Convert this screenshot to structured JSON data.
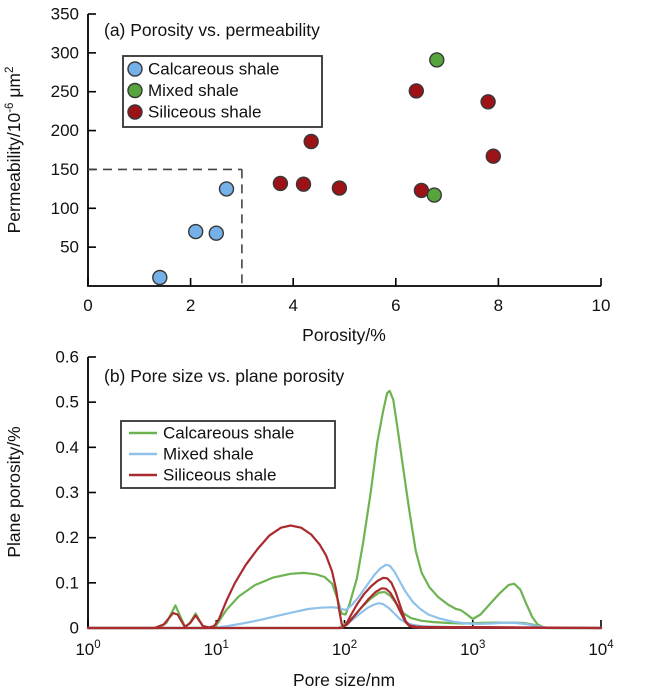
{
  "chart_data": [
    {
      "id": "a",
      "type": "scatter",
      "title": "(a) Porosity vs. permeability",
      "xlabel": "Porosity/%",
      "ylabel": "Permeability/10⁻⁶ μm²",
      "ylabel_parts": [
        [
          "Permeability/10",
          0
        ],
        [
          "-6",
          1
        ],
        [
          " μm",
          0
        ],
        [
          "2",
          1
        ]
      ],
      "xlim": [
        0,
        10
      ],
      "ylim": [
        0,
        350
      ],
      "xticks": [
        {
          "v": 0,
          "label": "0"
        },
        {
          "v": 2,
          "label": "2"
        },
        {
          "v": 4,
          "label": "4"
        },
        {
          "v": 6,
          "label": "6"
        },
        {
          "v": 8,
          "label": "8"
        },
        {
          "v": 10,
          "label": "10"
        }
      ],
      "yticks": [
        {
          "v": 50,
          "label": "50"
        },
        {
          "v": 100,
          "label": "100"
        },
        {
          "v": 150,
          "label": "150"
        },
        {
          "v": 200,
          "label": "200"
        },
        {
          "v": 250,
          "label": "250"
        },
        {
          "v": 300,
          "label": "300"
        },
        {
          "v": 350,
          "label": "350"
        }
      ],
      "grid": false,
      "legend_position": "upper-left-inside",
      "threshold_box": {
        "x": 3,
        "y": 150
      },
      "legend": [
        {
          "label": "Calcareous shale",
          "color": "#73b1e8"
        },
        {
          "label": "Mixed shale",
          "color": "#56a53c"
        },
        {
          "label": "Siliceous shale",
          "color": "#9d1217"
        }
      ],
      "series": [
        {
          "name": "Calcareous shale",
          "color": "#73b1e8",
          "points": [
            [
              1.4,
              11
            ],
            [
              2.1,
              70
            ],
            [
              2.5,
              68
            ],
            [
              2.7,
              125
            ]
          ]
        },
        {
          "name": "Mixed shale",
          "color": "#56a53c",
          "points": [
            [
              6.75,
              117
            ],
            [
              6.8,
              291
            ]
          ]
        },
        {
          "name": "Siliceous shale",
          "color": "#9d1217",
          "points": [
            [
              3.75,
              132
            ],
            [
              4.2,
              131
            ],
            [
              4.35,
              186
            ],
            [
              4.9,
              126
            ],
            [
              6.4,
              251
            ],
            [
              6.5,
              123
            ],
            [
              7.8,
              237
            ],
            [
              7.9,
              167
            ]
          ]
        }
      ],
      "draw_order": [
        0,
        2,
        1
      ]
    },
    {
      "id": "b",
      "type": "line",
      "title": "(b) Pore size vs. plane porosity",
      "xlabel": "Pore size/nm",
      "ylabel": "Plane porosity/%",
      "xscale": "log",
      "xlim": [
        1,
        10000
      ],
      "ylim": [
        0,
        0.6
      ],
      "xtick_exponents": [
        0,
        1,
        2,
        3,
        4
      ],
      "yticks": [
        {
          "v": 0,
          "label": "0"
        },
        {
          "v": 0.1,
          "label": "0.1"
        },
        {
          "v": 0.2,
          "label": "0.2"
        },
        {
          "v": 0.3,
          "label": "0.3"
        },
        {
          "v": 0.4,
          "label": "0.4"
        },
        {
          "v": 0.5,
          "label": "0.5"
        },
        {
          "v": 0.6,
          "label": "0.6"
        }
      ],
      "grid": false,
      "legend_position": "upper-left-inside",
      "legend": [
        {
          "label": "Calcareous shale",
          "color": "#6eb352"
        },
        {
          "label": "Mixed shale",
          "color": "#8fc2ea"
        },
        {
          "label": "Siliceous shale",
          "color": "#aa2b2f"
        }
      ],
      "series": [
        {
          "name": "Calcareous shale 1",
          "group": "Calcareous shale",
          "color": "#6eb352",
          "points": [
            [
              1,
              0
            ],
            [
              3.6,
              0
            ],
            [
              4.1,
              0.012
            ],
            [
              4.8,
              0.05
            ],
            [
              5.7,
              0.003
            ],
            [
              6.2,
              0.01
            ],
            [
              6.9,
              0.032
            ],
            [
              7.8,
              0.005
            ],
            [
              8.8,
              0.001
            ],
            [
              10,
              0.006
            ],
            [
              12,
              0.04
            ],
            [
              15,
              0.07
            ],
            [
              20,
              0.095
            ],
            [
              28,
              0.112
            ],
            [
              38,
              0.12
            ],
            [
              48,
              0.122
            ],
            [
              60,
              0.119
            ],
            [
              70,
              0.113
            ],
            [
              80,
              0.098
            ],
            [
              88,
              0.065
            ],
            [
              95,
              0.032
            ],
            [
              102,
              0.03
            ],
            [
              110,
              0.055
            ],
            [
              125,
              0.11
            ],
            [
              140,
              0.19
            ],
            [
              160,
              0.3
            ],
            [
              180,
              0.41
            ],
            [
              200,
              0.48
            ],
            [
              215,
              0.52
            ],
            [
              225,
              0.525
            ],
            [
              240,
              0.505
            ],
            [
              260,
              0.44
            ],
            [
              285,
              0.36
            ],
            [
              320,
              0.26
            ],
            [
              360,
              0.17
            ],
            [
              400,
              0.122
            ],
            [
              460,
              0.09
            ],
            [
              540,
              0.068
            ],
            [
              640,
              0.052
            ],
            [
              740,
              0.042
            ],
            [
              800,
              0.04
            ],
            [
              880,
              0.032
            ],
            [
              1000,
              0.02
            ],
            [
              1150,
              0.03
            ],
            [
              1350,
              0.052
            ],
            [
              1600,
              0.075
            ],
            [
              1900,
              0.095
            ],
            [
              2100,
              0.098
            ],
            [
              2350,
              0.085
            ],
            [
              2600,
              0.055
            ],
            [
              2900,
              0.025
            ],
            [
              3200,
              0.008
            ],
            [
              3600,
              0.001
            ],
            [
              4200,
              0
            ],
            [
              10000,
              0
            ]
          ]
        },
        {
          "name": "Calcareous shale 2",
          "group": "Calcareous shale",
          "color": "#6eb352",
          "points": [
            [
              1,
              0
            ],
            [
              90,
              0
            ],
            [
              100,
              0.008
            ],
            [
              115,
              0.022
            ],
            [
              135,
              0.045
            ],
            [
              160,
              0.065
            ],
            [
              185,
              0.078
            ],
            [
              205,
              0.08
            ],
            [
              230,
              0.07
            ],
            [
              260,
              0.05
            ],
            [
              290,
              0.032
            ],
            [
              330,
              0.022
            ],
            [
              400,
              0.016
            ],
            [
              500,
              0.013
            ],
            [
              650,
              0.011
            ],
            [
              850,
              0.01
            ],
            [
              1100,
              0.011
            ],
            [
              1500,
              0.012
            ],
            [
              2000,
              0.012
            ],
            [
              2500,
              0.011
            ],
            [
              3000,
              0.007
            ],
            [
              3400,
              0.002
            ],
            [
              3800,
              0
            ],
            [
              10000,
              0
            ]
          ]
        },
        {
          "name": "Mixed shale 1",
          "group": "Mixed shale",
          "color": "#8fc2ea",
          "points": [
            [
              1,
              0
            ],
            [
              9.5,
              0
            ],
            [
              12,
              0.004
            ],
            [
              16,
              0.01
            ],
            [
              22,
              0.018
            ],
            [
              30,
              0.027
            ],
            [
              40,
              0.035
            ],
            [
              52,
              0.042
            ],
            [
              65,
              0.045
            ],
            [
              80,
              0.046
            ],
            [
              92,
              0.044
            ],
            [
              100,
              0.04
            ],
            [
              105,
              0.042
            ],
            [
              115,
              0.052
            ],
            [
              130,
              0.07
            ],
            [
              150,
              0.095
            ],
            [
              170,
              0.117
            ],
            [
              190,
              0.132
            ],
            [
              210,
              0.14
            ],
            [
              225,
              0.138
            ],
            [
              245,
              0.125
            ],
            [
              270,
              0.103
            ],
            [
              300,
              0.08
            ],
            [
              340,
              0.058
            ],
            [
              390,
              0.042
            ],
            [
              450,
              0.03
            ],
            [
              550,
              0.021
            ],
            [
              700,
              0.014
            ],
            [
              900,
              0.01
            ],
            [
              1100,
              0.009
            ],
            [
              1400,
              0.01
            ],
            [
              1800,
              0.012
            ],
            [
              2200,
              0.011
            ],
            [
              2700,
              0.008
            ],
            [
              3200,
              0.004
            ],
            [
              3700,
              0.001
            ],
            [
              4200,
              0
            ],
            [
              10000,
              0
            ]
          ]
        },
        {
          "name": "Mixed shale 2",
          "group": "Mixed shale",
          "color": "#8fc2ea",
          "points": [
            [
              1,
              0
            ],
            [
              92,
              0
            ],
            [
              102,
              0.006
            ],
            [
              115,
              0.018
            ],
            [
              132,
              0.032
            ],
            [
              152,
              0.045
            ],
            [
              170,
              0.052
            ],
            [
              185,
              0.055
            ],
            [
              200,
              0.053
            ],
            [
              220,
              0.045
            ],
            [
              245,
              0.032
            ],
            [
              270,
              0.02
            ],
            [
              300,
              0.012
            ],
            [
              340,
              0.007
            ],
            [
              400,
              0.004
            ],
            [
              500,
              0.003
            ],
            [
              700,
              0.002
            ],
            [
              1000,
              0.002
            ],
            [
              2000,
              0.001
            ],
            [
              4000,
              0
            ],
            [
              10000,
              0
            ]
          ]
        },
        {
          "name": "Siliceous shale 1",
          "group": "Siliceous shale",
          "color": "#aa2b2f",
          "points": [
            [
              1,
              0
            ],
            [
              3.3,
              0
            ],
            [
              3.9,
              0.008
            ],
            [
              4.6,
              0.033
            ],
            [
              5,
              0.03
            ],
            [
              5.7,
              0.002
            ],
            [
              6.3,
              0.012
            ],
            [
              6.9,
              0.028
            ],
            [
              7.9,
              0.004
            ],
            [
              8.8,
              0.001
            ],
            [
              9.6,
              0.004
            ],
            [
              10.5,
              0.02
            ],
            [
              12,
              0.06
            ],
            [
              14,
              0.1
            ],
            [
              17,
              0.14
            ],
            [
              21,
              0.175
            ],
            [
              26,
              0.205
            ],
            [
              32,
              0.222
            ],
            [
              38,
              0.227
            ],
            [
              46,
              0.222
            ],
            [
              55,
              0.207
            ],
            [
              64,
              0.185
            ],
            [
              72,
              0.16
            ],
            [
              80,
              0.125
            ],
            [
              86,
              0.085
            ],
            [
              91,
              0.04
            ],
            [
              95,
              0.01
            ],
            [
              98,
              0.002
            ],
            [
              103,
              0.008
            ],
            [
              112,
              0.028
            ],
            [
              125,
              0.052
            ],
            [
              142,
              0.075
            ],
            [
              162,
              0.093
            ],
            [
              182,
              0.105
            ],
            [
              200,
              0.111
            ],
            [
              215,
              0.11
            ],
            [
              232,
              0.1
            ],
            [
              250,
              0.08
            ],
            [
              268,
              0.055
            ],
            [
              285,
              0.032
            ],
            [
              300,
              0.015
            ],
            [
              320,
              0.006
            ],
            [
              360,
              0.003
            ],
            [
              450,
              0.002
            ],
            [
              700,
              0.002
            ],
            [
              1200,
              0.002
            ],
            [
              3000,
              0.001
            ],
            [
              10000,
              0
            ]
          ]
        },
        {
          "name": "Siliceous shale 2",
          "group": "Siliceous shale",
          "color": "#aa2b2f",
          "points": [
            [
              1,
              0
            ],
            [
              95,
              0
            ],
            [
              105,
              0.008
            ],
            [
              118,
              0.025
            ],
            [
              135,
              0.045
            ],
            [
              155,
              0.065
            ],
            [
              175,
              0.08
            ],
            [
              195,
              0.088
            ],
            [
              210,
              0.087
            ],
            [
              228,
              0.078
            ],
            [
              248,
              0.06
            ],
            [
              268,
              0.04
            ],
            [
              285,
              0.025
            ],
            [
              300,
              0.013
            ],
            [
              318,
              0.005
            ],
            [
              345,
              0.002
            ],
            [
              420,
              0.001
            ],
            [
              10000,
              0
            ]
          ]
        }
      ]
    }
  ]
}
